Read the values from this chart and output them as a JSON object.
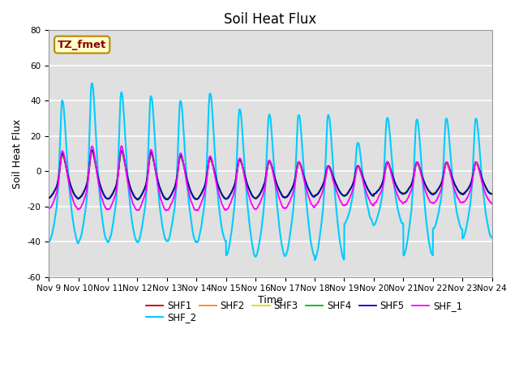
{
  "title": "Soil Heat Flux",
  "xlabel": "Time",
  "ylabel": "Soil Heat Flux",
  "ylim": [
    -60,
    80
  ],
  "annotation": "TZ_fmet",
  "series_names": [
    "SHF1",
    "SHF2",
    "SHF3",
    "SHF4",
    "SHF5",
    "SHF_1",
    "SHF_2"
  ],
  "series_colors": [
    "#cc0000",
    "#ff8800",
    "#dddd00",
    "#00bb00",
    "#0000cc",
    "#ff00ff",
    "#00ccff"
  ],
  "line_widths": [
    1.3,
    1.3,
    1.3,
    1.3,
    1.3,
    1.3,
    1.5
  ],
  "xtick_labels": [
    "Nov 9",
    "Nov 10",
    "Nov 11",
    "Nov 12",
    "Nov 13",
    "Nov 14",
    "Nov 15",
    "Nov 16",
    "Nov 17",
    "Nov 18",
    "Nov 19",
    "Nov 20",
    "Nov 21",
    "Nov 22",
    "Nov 23",
    "Nov 24"
  ],
  "ytick_values": [
    -60,
    -40,
    -20,
    0,
    20,
    40,
    60,
    80
  ],
  "bg_color": "#e0e0e0",
  "fig_bg_color": "#ffffff",
  "grid_color": "#ffffff",
  "title_fontsize": 12,
  "axis_label_fontsize": 9,
  "tick_fontsize": 7.5,
  "legend_fontsize": 8.5
}
